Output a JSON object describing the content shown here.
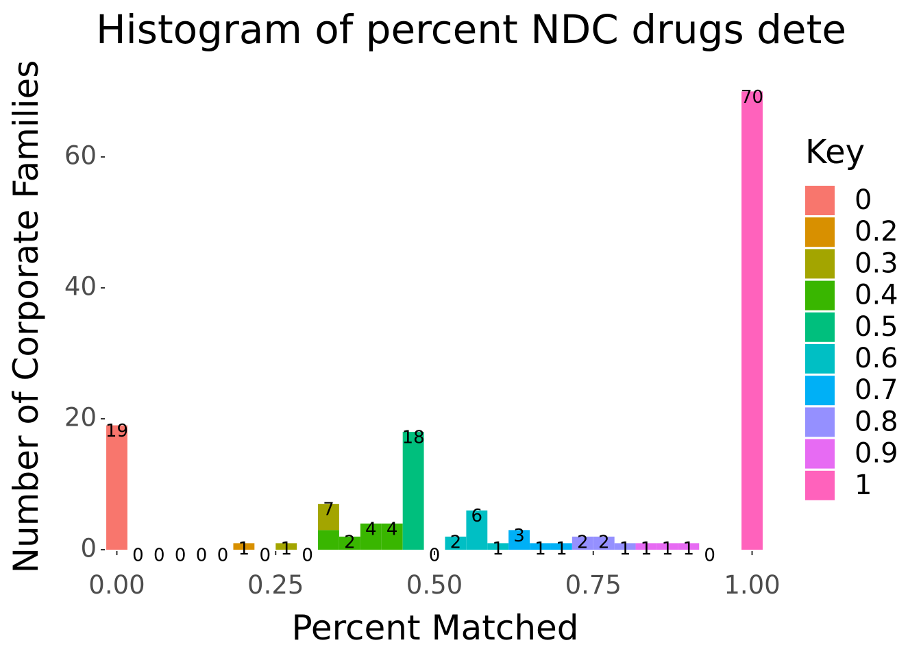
{
  "chart_data": {
    "type": "bar",
    "title": "Histogram of percent NDC drugs dete",
    "xlabel": "Percent Matched",
    "ylabel": "Number of Corporate Families",
    "xlim": [
      -0.0167,
      1.0167
    ],
    "ylim": [
      0,
      73.5
    ],
    "x_ticks": [
      "0.00",
      "0.25",
      "0.50",
      "0.75",
      "1.00"
    ],
    "x_tick_values": [
      0,
      0.25,
      0.5,
      0.75,
      1.0
    ],
    "y_ticks": [
      "0",
      "20",
      "40",
      "60"
    ],
    "y_tick_values": [
      0,
      20,
      40,
      60
    ],
    "grid": false,
    "legend": {
      "title": "Key",
      "position": "right",
      "entries": [
        {
          "label": "0",
          "color": "#F8766D"
        },
        {
          "label": "0.2",
          "color": "#D89000"
        },
        {
          "label": "0.3",
          "color": "#A3A500"
        },
        {
          "label": "0.4",
          "color": "#39B600"
        },
        {
          "label": "0.5",
          "color": "#00BF7D"
        },
        {
          "label": "0.6",
          "color": "#00BFC4"
        },
        {
          "label": "0.7",
          "color": "#00B0F6"
        },
        {
          "label": "0.8",
          "color": "#9590FF"
        },
        {
          "label": "0.9",
          "color": "#E76BF3"
        },
        {
          "label": "1",
          "color": "#FF62BC"
        }
      ]
    },
    "bin_width": 0.0333,
    "bins": [
      {
        "x": 0.0,
        "count": 19,
        "label": "19"
      },
      {
        "x": 0.0333,
        "count": 0,
        "label": "0"
      },
      {
        "x": 0.0667,
        "count": 0,
        "label": "0"
      },
      {
        "x": 0.1,
        "count": 0,
        "label": "0"
      },
      {
        "x": 0.1333,
        "count": 0,
        "label": "0"
      },
      {
        "x": 0.1667,
        "count": 0,
        "label": "0"
      },
      {
        "x": 0.2,
        "count": 1,
        "label": "1"
      },
      {
        "x": 0.2333,
        "count": 0,
        "label": "0"
      },
      {
        "x": 0.2667,
        "count": 1,
        "label": "1"
      },
      {
        "x": 0.3,
        "count": 0,
        "label": "0"
      },
      {
        "x": 0.3333,
        "count": 7,
        "label": "7"
      },
      {
        "x": 0.3667,
        "count": 2,
        "label": "2"
      },
      {
        "x": 0.4,
        "count": 4,
        "label": "4"
      },
      {
        "x": 0.4333,
        "count": 4,
        "label": "4"
      },
      {
        "x": 0.4667,
        "count": 18,
        "label": "18"
      },
      {
        "x": 0.5,
        "count": 0,
        "label": "0"
      },
      {
        "x": 0.5333,
        "count": 2,
        "label": "2"
      },
      {
        "x": 0.5667,
        "count": 6,
        "label": "6"
      },
      {
        "x": 0.6,
        "count": 1,
        "label": "1"
      },
      {
        "x": 0.6333,
        "count": 3,
        "label": "3"
      },
      {
        "x": 0.6667,
        "count": 1,
        "label": "1"
      },
      {
        "x": 0.7,
        "count": 1,
        "label": "1"
      },
      {
        "x": 0.7333,
        "count": 2,
        "label": "2"
      },
      {
        "x": 0.7667,
        "count": 2,
        "label": "2"
      },
      {
        "x": 0.8,
        "count": 1,
        "label": "1"
      },
      {
        "x": 0.8333,
        "count": 1,
        "label": "1"
      },
      {
        "x": 0.8667,
        "count": 1,
        "label": "1"
      },
      {
        "x": 0.9,
        "count": 1,
        "label": "1"
      },
      {
        "x": 0.9333,
        "count": 0,
        "label": "0"
      },
      {
        "x": 1.0,
        "count": 70,
        "label": "70"
      }
    ],
    "segments": [
      {
        "x": 0.0,
        "from": 0,
        "to": 19,
        "key": "0"
      },
      {
        "x": 0.2,
        "from": 0,
        "to": 1,
        "key": "0.2"
      },
      {
        "x": 0.2667,
        "from": 0,
        "to": 1,
        "key": "0.3"
      },
      {
        "x": 0.3333,
        "from": 0,
        "to": 3,
        "key": "0.4"
      },
      {
        "x": 0.3333,
        "from": 3,
        "to": 7,
        "key": "0.3"
      },
      {
        "x": 0.3667,
        "from": 0,
        "to": 2,
        "key": "0.4"
      },
      {
        "x": 0.4,
        "from": 0,
        "to": 4,
        "key": "0.4"
      },
      {
        "x": 0.4333,
        "from": 0,
        "to": 4,
        "key": "0.4"
      },
      {
        "x": 0.4667,
        "from": 0,
        "to": 18,
        "key": "0.5"
      },
      {
        "x": 0.5333,
        "from": 0,
        "to": 2,
        "key": "0.6"
      },
      {
        "x": 0.5667,
        "from": 0,
        "to": 6,
        "key": "0.6"
      },
      {
        "x": 0.6,
        "from": 0,
        "to": 1,
        "key": "0.6"
      },
      {
        "x": 0.6333,
        "from": 0,
        "to": 3,
        "key": "0.7"
      },
      {
        "x": 0.6667,
        "from": 0,
        "to": 1,
        "key": "0.7"
      },
      {
        "x": 0.7,
        "from": 0,
        "to": 1,
        "key": "0.7"
      },
      {
        "x": 0.7333,
        "from": 0,
        "to": 2,
        "key": "0.8"
      },
      {
        "x": 0.7667,
        "from": 0,
        "to": 2,
        "key": "0.8"
      },
      {
        "x": 0.8,
        "from": 0,
        "to": 1,
        "key": "0.8"
      },
      {
        "x": 0.8333,
        "from": 0,
        "to": 1,
        "key": "0.9"
      },
      {
        "x": 0.8667,
        "from": 0,
        "to": 1,
        "key": "0.9"
      },
      {
        "x": 0.9,
        "from": 0,
        "to": 1,
        "key": "0.9"
      },
      {
        "x": 1.0,
        "from": 0,
        "to": 70,
        "key": "1"
      }
    ]
  }
}
